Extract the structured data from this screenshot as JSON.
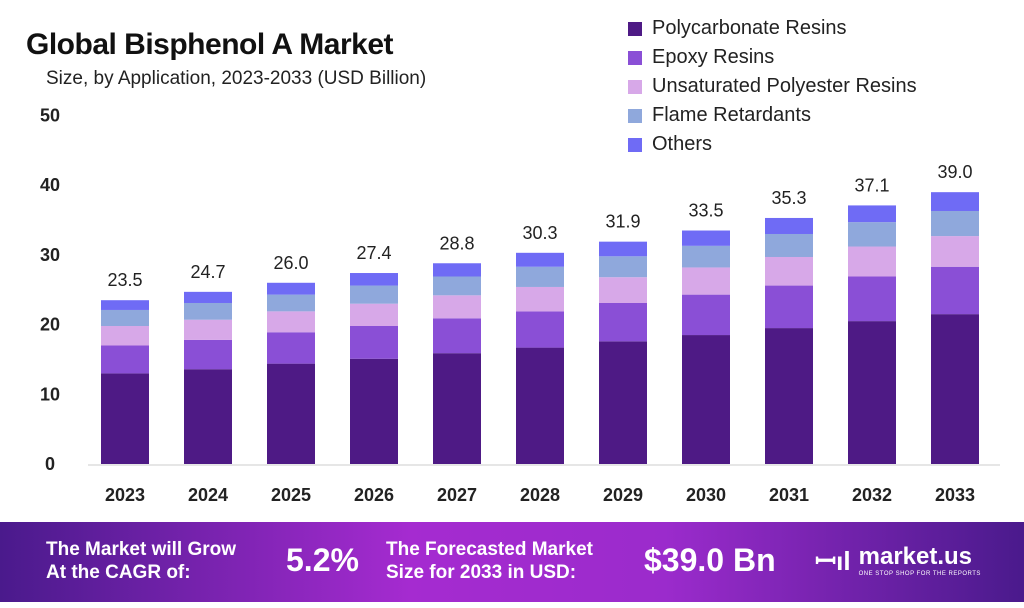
{
  "chart_data": {
    "type": "bar",
    "stacked": true,
    "title": "Global Bisphenol A Market",
    "subtitle": "Size, by Application, 2023-2033 (USD Billion)",
    "categories": [
      "2023",
      "2024",
      "2025",
      "2026",
      "2027",
      "2028",
      "2029",
      "2030",
      "2031",
      "2032",
      "2033"
    ],
    "totals": [
      "23.5",
      "24.7",
      "26.0",
      "27.4",
      "28.8",
      "30.3",
      "31.9",
      "33.5",
      "35.3",
      "37.1",
      "39.0"
    ],
    "yticks": [
      "0",
      "10",
      "20",
      "30",
      "40",
      "50"
    ],
    "ylim": [
      0,
      50
    ],
    "grid": false,
    "legend_position": "top-right",
    "series": [
      {
        "name": "Polycarbonate Resins",
        "color": "#4e1a85",
        "values": [
          13.0,
          13.6,
          14.4,
          15.1,
          15.9,
          16.7,
          17.6,
          18.5,
          19.5,
          20.5,
          21.5
        ]
      },
      {
        "name": "Epoxy Resins",
        "color": "#8a4fd6",
        "values": [
          4.0,
          4.2,
          4.5,
          4.7,
          5.0,
          5.2,
          5.5,
          5.8,
          6.1,
          6.4,
          6.8
        ]
      },
      {
        "name": "Unsaturated Polyester Resins",
        "color": "#d7a8e8",
        "values": [
          2.8,
          2.9,
          3.0,
          3.2,
          3.3,
          3.5,
          3.7,
          3.9,
          4.1,
          4.3,
          4.4
        ]
      },
      {
        "name": "Flame Retardants",
        "color": "#8fa8dc",
        "values": [
          2.3,
          2.4,
          2.4,
          2.6,
          2.7,
          2.9,
          3.0,
          3.1,
          3.3,
          3.5,
          3.6
        ]
      },
      {
        "name": "Others",
        "color": "#6f6bf5",
        "values": [
          1.4,
          1.6,
          1.7,
          1.8,
          1.9,
          2.0,
          2.1,
          2.2,
          2.3,
          2.4,
          2.7
        ]
      }
    ]
  },
  "banner": {
    "cagr_label_1": "The Market will Grow",
    "cagr_label_2": "At the CAGR of:",
    "cagr_value": "5.2%",
    "forecast_label_1": "The Forecasted Market",
    "forecast_label_2": "Size for 2033 in USD:",
    "forecast_value": "$39.0 Bn",
    "logo_name": "market.us",
    "logo_tagline": "ONE STOP SHOP FOR THE REPORTS"
  }
}
